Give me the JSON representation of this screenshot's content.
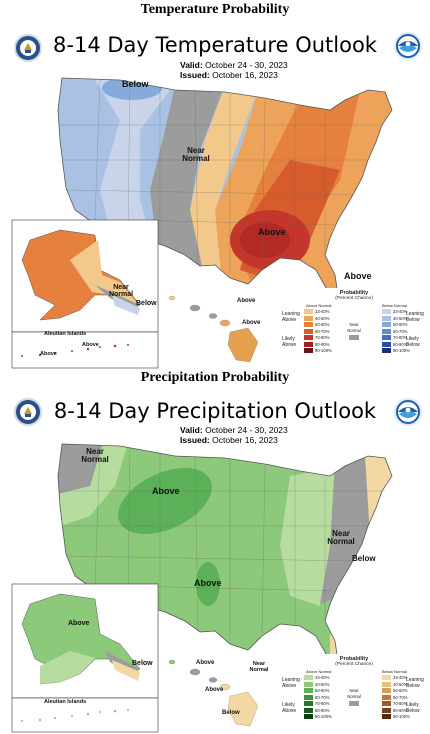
{
  "temperature": {
    "section_title": "Temperature Probability",
    "map_title": "8-14 Day Temperature Outlook",
    "valid_label": "Valid:",
    "valid_value": "October 24 - 30, 2023",
    "issued_label": "Issued:",
    "issued_value": "October 16, 2023",
    "labels": {
      "below_nw": "Below",
      "near_normal": "Near Normal",
      "above_south": "Above",
      "above_se": "Above",
      "ak_near_normal": "Near Normal",
      "ak_below": "Below",
      "aleutian": "Aleutian Islands",
      "aleutian_above1": "Above",
      "aleutian_above2": "Above",
      "hi_above": "Above",
      "hi_above2": "Above"
    },
    "legend": {
      "title": "Probability",
      "subtitle": "(Percent Chance)",
      "left_header": "Above Normal",
      "right_header": "Below Normal",
      "leaning_above": "Leaning Above",
      "likely_above": "Likely Above",
      "near": "Near Normal",
      "leaning_below": "Leaning Below",
      "likely_below": "Likely Below",
      "ranges": [
        "33-40%",
        "40-50%",
        "50-60%",
        "60-70%",
        "70-80%",
        "80-90%",
        "90-100%"
      ],
      "above_colors": [
        "#f2c98a",
        "#eda45a",
        "#e5803f",
        "#d65c2e",
        "#c4352a",
        "#a11f1f",
        "#6e1111"
      ],
      "below_colors": [
        "#c9d4ea",
        "#a9c2e4",
        "#86aadb",
        "#5e8fd0",
        "#3f6fbf",
        "#2a4ea2",
        "#1c2d7a"
      ]
    }
  },
  "precipitation": {
    "section_title": "Precipitation Probability",
    "map_title": "8-14 Day Precipitation Outlook",
    "valid_label": "Valid:",
    "valid_value": "October 24 - 30, 2023",
    "issued_label": "Issued:",
    "issued_value": "October 16, 2023",
    "labels": {
      "near_normal_nw": "Near Normal",
      "above_north": "Above",
      "above_south": "Above",
      "near_normal_east": "Near Normal",
      "below_east": "Below",
      "ak_above": "Above",
      "ak_below": "Below",
      "aleutian": "Aleutian Islands",
      "hi_above1": "Above",
      "hi_near": "Near Normal",
      "hi_above2": "Above",
      "hi_below": "Below"
    },
    "legend": {
      "title": "Probability",
      "subtitle": "(Percent Chance)",
      "left_header": "Above Normal",
      "right_header": "Below Normal",
      "leaning_above": "Leaning Above",
      "likely_above": "Likely Above",
      "near": "Near Normal",
      "leaning_below": "Leaning Below",
      "likely_below": "Likely Below",
      "ranges": [
        "33-40%",
        "40-50%",
        "50-60%",
        "60-70%",
        "70-80%",
        "80-90%",
        "90-100%"
      ],
      "above_colors": [
        "#b6dca0",
        "#8cc97a",
        "#5cb058",
        "#3a953f",
        "#237a2c",
        "#155e1e",
        "#0a3f12"
      ],
      "below_colors": [
        "#f2d9a4",
        "#e8bf7d",
        "#d69f5b",
        "#bd7c3d",
        "#9b5a28",
        "#77401b",
        "#52290f"
      ]
    }
  },
  "colors": {
    "near_normal": "#9c9c9c",
    "land_outline": "#555555",
    "noaa_blue": "#1f5fa8",
    "doc_blue": "#2b4f8c"
  },
  "icons": {
    "doc_logo": "department-of-commerce-seal",
    "noaa_logo": "noaa-logo"
  }
}
